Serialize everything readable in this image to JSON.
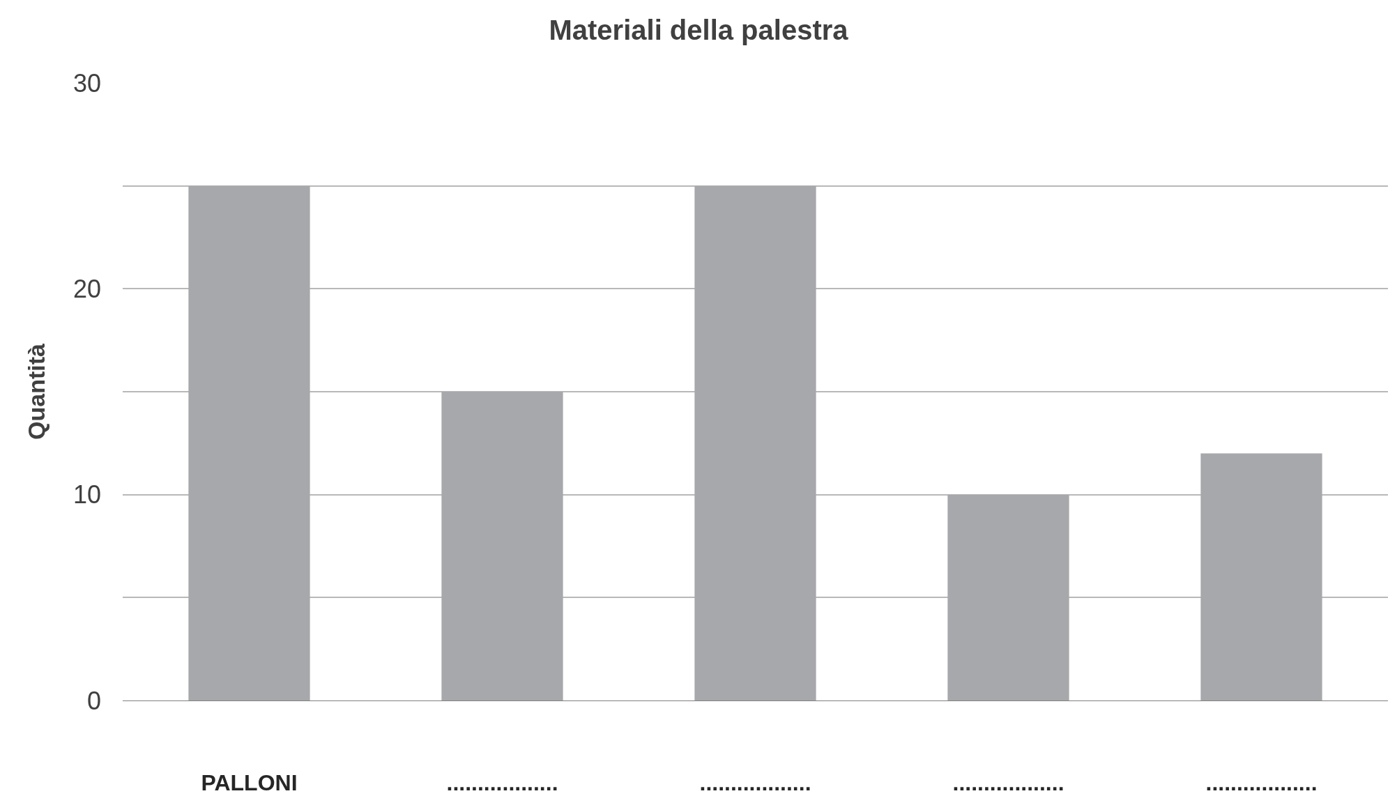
{
  "chart_data": {
    "type": "bar",
    "title": "Materiali della palestra",
    "ylabel": "Quantità",
    "categories": [
      "PALLONI",
      "..................",
      "..................",
      "..................",
      ".................."
    ],
    "values": [
      25,
      15,
      25,
      10,
      12
    ],
    "color": "#a7a8ab",
    "ylim": [
      0,
      30
    ],
    "yticks": [
      0,
      {
        "value": 5,
        "label": null
      },
      10,
      {
        "value": 15,
        "label": null
      },
      20,
      {
        "value": 25,
        "label": null
      },
      30
    ],
    "grid": "y",
    "legend": false
  }
}
